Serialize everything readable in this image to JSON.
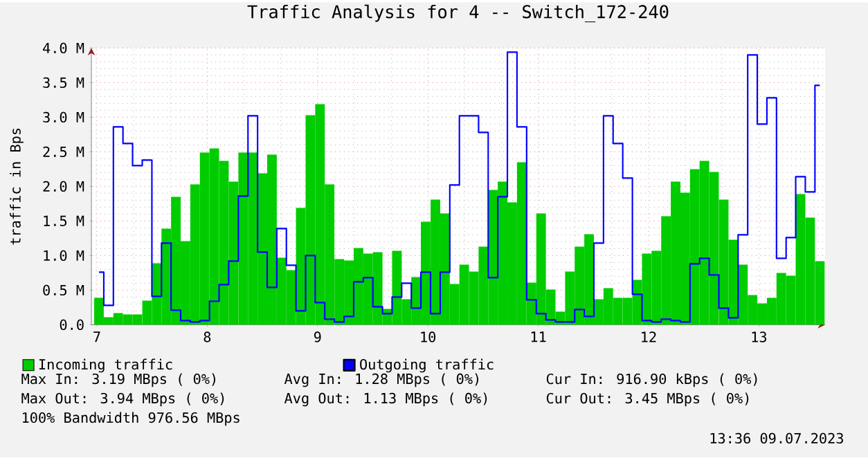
{
  "chart_data": {
    "type": "bar",
    "title": "Traffic Analysis for 4 -- Switch_172-240",
    "ylabel": "traffic in Bps",
    "x": [
      7.019,
      7.106,
      7.193,
      7.28,
      7.367,
      7.455,
      7.542,
      7.629,
      7.716,
      7.803,
      7.89,
      7.977,
      8.064,
      8.151,
      8.238,
      8.326,
      8.413,
      8.5,
      8.587,
      8.674,
      8.761,
      8.848,
      8.935,
      9.022,
      9.109,
      9.197,
      9.284,
      9.371,
      9.458,
      9.545,
      9.632,
      9.719,
      9.806,
      9.893,
      9.98,
      10.068,
      10.155,
      10.242,
      10.329,
      10.416,
      10.503,
      10.59,
      10.677,
      10.764,
      10.851,
      10.939,
      11.026,
      11.113,
      11.2,
      11.287,
      11.374,
      11.461,
      11.548,
      11.635,
      11.722,
      11.81,
      11.897,
      11.984,
      12.071,
      12.158,
      12.245,
      12.332,
      12.419,
      12.506,
      12.593,
      12.681,
      12.768,
      12.855,
      12.942,
      13.029,
      13.116,
      13.203,
      13.29,
      13.377,
      13.464,
      13.552
    ],
    "series": [
      {
        "name": "Incoming traffic",
        "color": "#00cc00",
        "values": [
          0.39,
          0.11,
          0.17,
          0.15,
          0.15,
          0.35,
          0.89,
          1.39,
          1.85,
          1.21,
          2.03,
          2.49,
          2.55,
          2.37,
          2.07,
          2.49,
          2.49,
          2.19,
          2.46,
          0.97,
          0.79,
          1.69,
          3.03,
          3.19,
          2.03,
          0.95,
          0.93,
          1.11,
          1.03,
          1.05,
          0.23,
          1.07,
          0.37,
          0.69,
          1.49,
          1.81,
          1.61,
          0.59,
          0.87,
          0.77,
          1.13,
          1.95,
          2.07,
          1.77,
          2.35,
          0.61,
          1.61,
          0.51,
          0.19,
          0.77,
          1.13,
          1.31,
          0.37,
          0.53,
          0.39,
          0.39,
          0.65,
          1.03,
          1.07,
          1.57,
          2.07,
          1.91,
          2.25,
          2.37,
          2.21,
          1.81,
          1.23,
          0.87,
          0.43,
          0.31,
          0.39,
          0.75,
          0.71,
          1.89,
          1.55,
          0.92
        ]
      },
      {
        "name": "Outgoing traffic",
        "type": "step",
        "color": "#0000ff",
        "values": [
          0.76,
          0.28,
          2.86,
          2.62,
          2.3,
          2.38,
          0.41,
          1.18,
          0.21,
          0.06,
          0.04,
          0.06,
          0.34,
          0.58,
          0.92,
          1.86,
          3.02,
          1.05,
          0.54,
          1.39,
          0.86,
          0.2,
          1.0,
          0.32,
          0.08,
          0.04,
          0.12,
          0.62,
          0.68,
          0.26,
          0.16,
          0.4,
          0.6,
          0.24,
          0.76,
          0.16,
          0.76,
          2.02,
          3.02,
          3.02,
          2.78,
          0.68,
          1.85,
          3.94,
          2.86,
          0.36,
          0.16,
          0.07,
          0.04,
          0.04,
          0.22,
          0.12,
          1.18,
          3.02,
          2.62,
          2.12,
          0.44,
          0.06,
          0.04,
          0.08,
          0.06,
          0.04,
          0.88,
          0.96,
          0.72,
          0.24,
          0.1,
          1.3,
          3.9,
          2.9,
          3.28,
          0.96,
          1.26,
          2.14,
          1.92,
          3.46
        ]
      }
    ],
    "xlim": [
      6.95,
      13.6
    ],
    "xticks": [
      7,
      8,
      9,
      10,
      11,
      12,
      13
    ],
    "ylim": [
      0,
      4.0
    ],
    "yticks": [
      {
        "value": 0,
        "label": "0.0"
      },
      {
        "value": 0.5,
        "label": "0.5 M"
      },
      {
        "value": 1.0,
        "label": "1.0 M"
      },
      {
        "value": 1.5,
        "label": "1.5 M"
      },
      {
        "value": 2.0,
        "label": "2.0 M"
      },
      {
        "value": 2.5,
        "label": "2.5 M"
      },
      {
        "value": 3.0,
        "label": "3.0 M"
      },
      {
        "value": 3.5,
        "label": "3.5 M"
      },
      {
        "value": 4.0,
        "label": "4.0 M"
      }
    ],
    "grid": true,
    "legend": "bottom",
    "annotations": [
      "Max In: 3.19 MBps ( 0%)",
      "Avg In: 1.28 MBps ( 0%)",
      "Cur In: 916.90 kBps ( 0%)",
      "Max Out: 3.94 MBps ( 0%)",
      "Avg Out: 1.13 MBps ( 0%)",
      "Cur Out: 3.45 MBps ( 0%)",
      "100% Bandwidth 976.56 MBps",
      "13:36 09.07.2023"
    ]
  }
}
